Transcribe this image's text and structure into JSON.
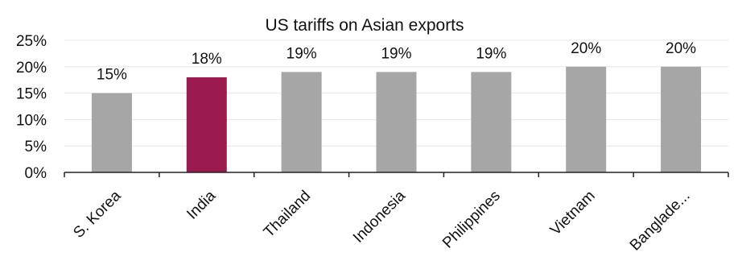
{
  "chart_data": {
    "type": "bar",
    "title": "US tariffs on Asian exports",
    "xlabel": "",
    "ylabel": "",
    "categories": [
      "S. Korea",
      "India",
      "Thailand",
      "Indonesia",
      "Philippines",
      "Vietnam",
      "Banglade..."
    ],
    "values": [
      15,
      18,
      19,
      19,
      19,
      20,
      20
    ],
    "data_labels": [
      "15%",
      "18%",
      "19%",
      "19%",
      "19%",
      "20%",
      "20%"
    ],
    "ylim": [
      0,
      25
    ],
    "yticks": [
      0,
      5,
      10,
      15,
      20,
      25
    ],
    "ytick_labels": [
      "0%",
      "5%",
      "10%",
      "15%",
      "20%",
      "25%"
    ],
    "grid": true,
    "legend": "none",
    "colors": {
      "default_bar": "#a6a6a6",
      "highlight_bar": "#9a1a4e",
      "highlight_category": "India"
    }
  }
}
